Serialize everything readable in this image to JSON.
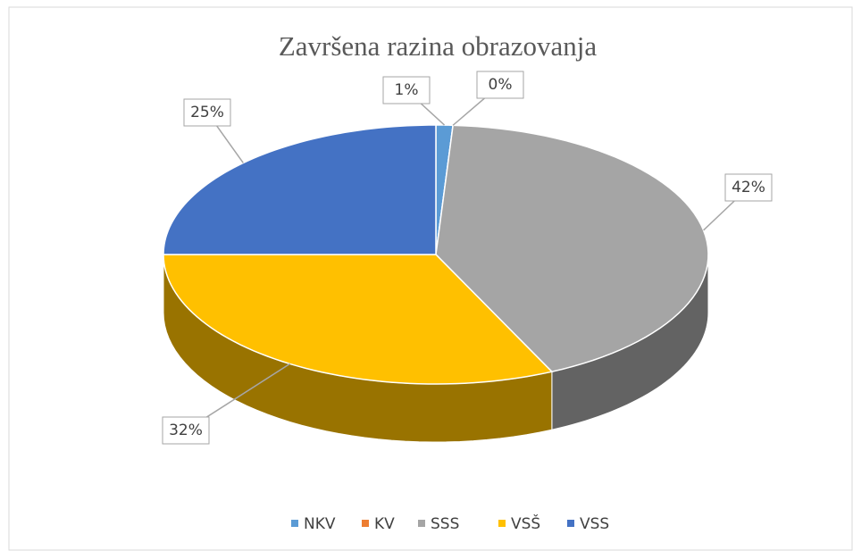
{
  "chart_data": {
    "type": "pie",
    "title": "Završena razina obrazovanja",
    "categories": [
      "NKV",
      "KV",
      "SSS",
      "VSŠ",
      "VSS"
    ],
    "values": [
      1,
      0,
      42,
      32,
      25
    ],
    "value_labels": [
      "1%",
      "0%",
      "42%",
      "32%",
      "25%"
    ],
    "colors": [
      "#5b9bd5",
      "#ed7d31",
      "#a5a5a5",
      "#ffc000",
      "#4472c4"
    ],
    "legend": "bottom"
  }
}
